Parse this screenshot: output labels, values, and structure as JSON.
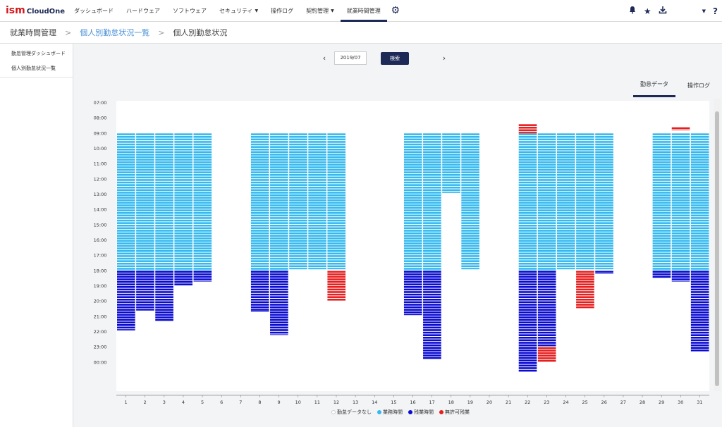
{
  "app": {
    "logo_main": "ism",
    "logo_sub": "CloudOne"
  },
  "nav": {
    "items": [
      {
        "label": "ダッシュボード",
        "caret": false,
        "active": false
      },
      {
        "label": "ハードウェア",
        "caret": false,
        "active": false
      },
      {
        "label": "ソフトウェア",
        "caret": false,
        "active": false
      },
      {
        "label": "セキュリティ",
        "caret": true,
        "active": false
      },
      {
        "label": "操作ログ",
        "caret": false,
        "active": false
      },
      {
        "label": "契約管理",
        "caret": true,
        "active": false
      },
      {
        "label": "就業時間管理",
        "caret": false,
        "active": true
      }
    ],
    "icons": [
      "gear-icon",
      "bell-icon",
      "star-icon",
      "download-icon",
      "user-caret-icon",
      "help-icon"
    ]
  },
  "breadcrumb": {
    "c1": "就業時間管理",
    "c2": "個人別勤怠状況一覧",
    "c3": "個人別勤怠状況"
  },
  "sidebar": {
    "items": [
      "勤怠管理ダッシュボード",
      "個人別勤怠状況一覧"
    ]
  },
  "month": {
    "value": "2019/07",
    "search_label": "検索"
  },
  "tabs": {
    "attendance": "勤怠データ",
    "oplog": "操作ログ"
  },
  "colors": {
    "work": "#34b9ef",
    "overtime": "#0a0ad0",
    "unauth": "#e61e1e",
    "nodata": "#ffffff"
  },
  "chart_data": {
    "type": "bar",
    "y_labels": [
      "07:00",
      "08:00",
      "09:00",
      "10:00",
      "11:00",
      "12:00",
      "13:00",
      "14:00",
      "15:00",
      "16:00",
      "17:00",
      "18:00",
      "19:00",
      "20:00",
      "21:00",
      "22:00",
      "23:00",
      "00:00"
    ],
    "categories": [
      1,
      2,
      3,
      4,
      5,
      6,
      7,
      8,
      9,
      10,
      11,
      12,
      13,
      14,
      15,
      16,
      17,
      18,
      19,
      20,
      21,
      22,
      23,
      24,
      25,
      26,
      27,
      28,
      29,
      30,
      31
    ],
    "days": [
      {
        "day": 1,
        "segments": [
          {
            "type": "work",
            "start": 9,
            "end": 18
          },
          {
            "type": "overtime",
            "start": 18,
            "end": 21.9
          }
        ]
      },
      {
        "day": 2,
        "segments": [
          {
            "type": "work",
            "start": 9,
            "end": 18
          },
          {
            "type": "overtime",
            "start": 18,
            "end": 20.6
          }
        ]
      },
      {
        "day": 3,
        "segments": [
          {
            "type": "work",
            "start": 9,
            "end": 18
          },
          {
            "type": "overtime",
            "start": 18,
            "end": 21.3
          }
        ]
      },
      {
        "day": 4,
        "segments": [
          {
            "type": "work",
            "start": 9,
            "end": 18
          },
          {
            "type": "overtime",
            "start": 18,
            "end": 19
          }
        ]
      },
      {
        "day": 5,
        "segments": [
          {
            "type": "work",
            "start": 9,
            "end": 18
          },
          {
            "type": "overtime",
            "start": 18,
            "end": 18.7
          }
        ]
      },
      {
        "day": 8,
        "segments": [
          {
            "type": "work",
            "start": 9,
            "end": 18
          },
          {
            "type": "overtime",
            "start": 18,
            "end": 20.7
          }
        ]
      },
      {
        "day": 9,
        "segments": [
          {
            "type": "work",
            "start": 9,
            "end": 18
          },
          {
            "type": "overtime",
            "start": 18,
            "end": 22.2
          }
        ]
      },
      {
        "day": 10,
        "segments": [
          {
            "type": "work",
            "start": 9,
            "end": 17.9
          }
        ]
      },
      {
        "day": 11,
        "segments": [
          {
            "type": "work",
            "start": 9,
            "end": 17.9
          }
        ]
      },
      {
        "day": 12,
        "segments": [
          {
            "type": "work",
            "start": 9,
            "end": 17.9
          },
          {
            "type": "unauth",
            "start": 18,
            "end": 20
          }
        ]
      },
      {
        "day": 16,
        "segments": [
          {
            "type": "work",
            "start": 9,
            "end": 18
          },
          {
            "type": "overtime",
            "start": 18,
            "end": 20.9
          }
        ]
      },
      {
        "day": 17,
        "segments": [
          {
            "type": "work",
            "start": 9,
            "end": 18
          },
          {
            "type": "overtime",
            "start": 18,
            "end": 23.8
          }
        ]
      },
      {
        "day": 18,
        "segments": [
          {
            "type": "work",
            "start": 9,
            "end": 12.9
          }
        ]
      },
      {
        "day": 19,
        "segments": [
          {
            "type": "work",
            "start": 9,
            "end": 17.9
          }
        ]
      },
      {
        "day": 22,
        "segments": [
          {
            "type": "unauth",
            "start": 8.4,
            "end": 9
          },
          {
            "type": "work",
            "start": 9,
            "end": 18
          },
          {
            "type": "overtime",
            "start": 18,
            "end": 24.6
          }
        ]
      },
      {
        "day": 23,
        "segments": [
          {
            "type": "work",
            "start": 9,
            "end": 18
          },
          {
            "type": "overtime",
            "start": 18,
            "end": 23
          },
          {
            "type": "unauth",
            "start": 23,
            "end": 24
          }
        ]
      },
      {
        "day": 24,
        "segments": [
          {
            "type": "work",
            "start": 9,
            "end": 17.9
          }
        ]
      },
      {
        "day": 25,
        "segments": [
          {
            "type": "work",
            "start": 9,
            "end": 17.9
          },
          {
            "type": "unauth",
            "start": 18,
            "end": 20.5
          }
        ]
      },
      {
        "day": 26,
        "segments": [
          {
            "type": "work",
            "start": 9,
            "end": 17.9
          },
          {
            "type": "overtime",
            "start": 18,
            "end": 18.2
          }
        ]
      },
      {
        "day": 29,
        "segments": [
          {
            "type": "work",
            "start": 9,
            "end": 18
          },
          {
            "type": "overtime",
            "start": 18,
            "end": 18.5
          }
        ]
      },
      {
        "day": 30,
        "segments": [
          {
            "type": "unauth",
            "start": 8.6,
            "end": 8.8
          },
          {
            "type": "work",
            "start": 9,
            "end": 18
          },
          {
            "type": "overtime",
            "start": 18,
            "end": 18.7
          }
        ]
      },
      {
        "day": 31,
        "segments": [
          {
            "type": "work",
            "start": 9,
            "end": 18
          },
          {
            "type": "overtime",
            "start": 18,
            "end": 23.3
          }
        ]
      }
    ],
    "legend": [
      {
        "label": "勤怠データなし",
        "type": "nodata"
      },
      {
        "label": "業務時間",
        "type": "work"
      },
      {
        "label": "残業時間",
        "type": "overtime"
      },
      {
        "label": "無許可残業",
        "type": "unauth"
      }
    ]
  }
}
